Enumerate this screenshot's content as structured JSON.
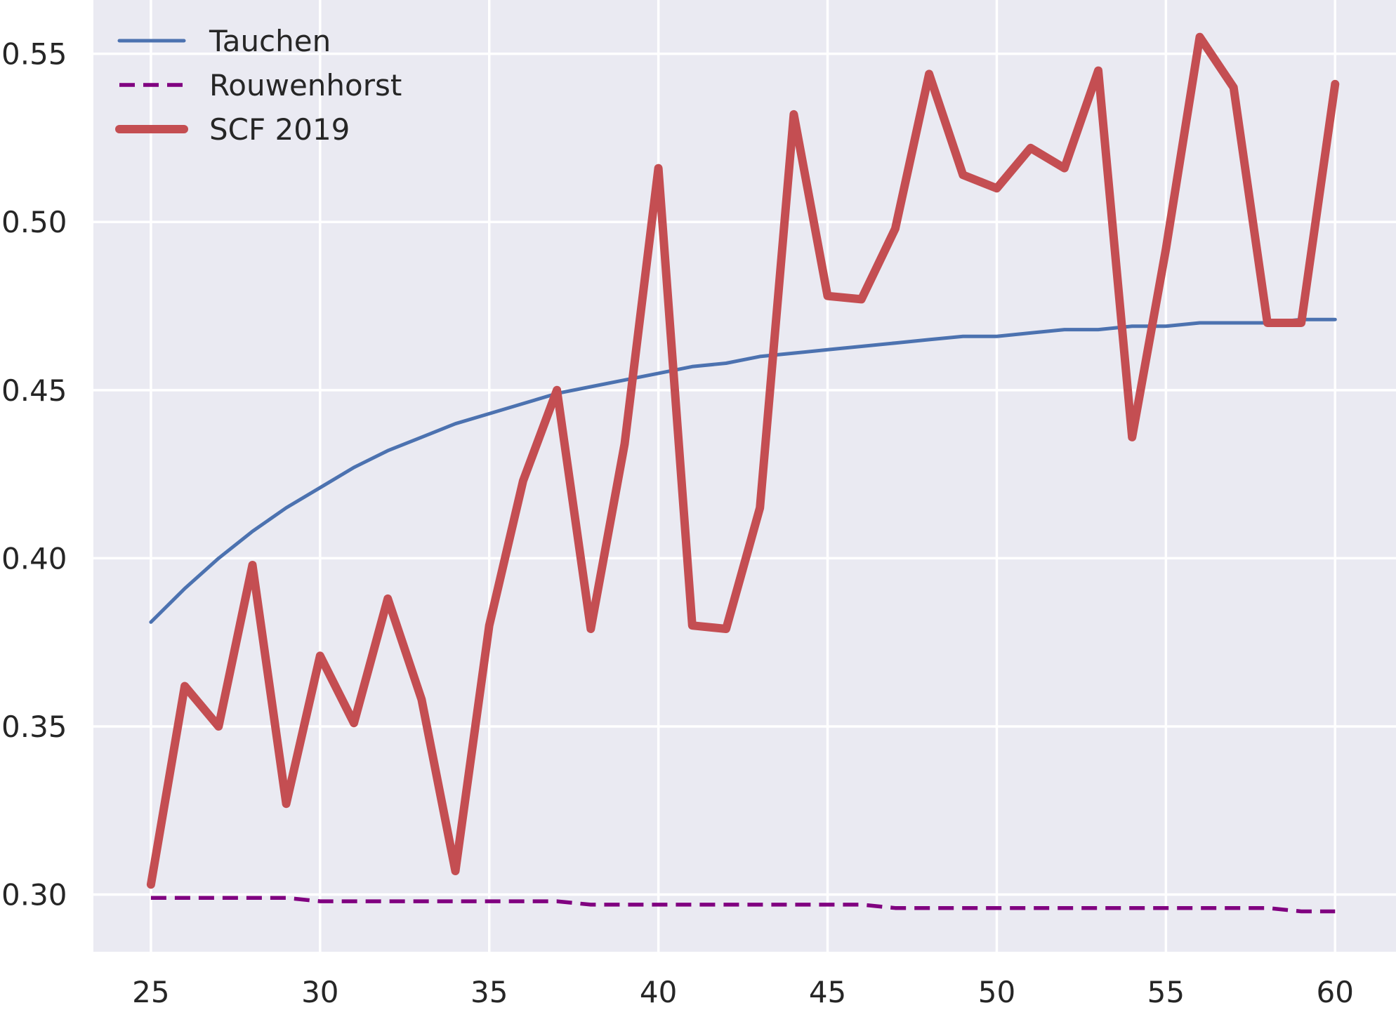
{
  "chart_data": {
    "type": "line",
    "title": "",
    "xlabel": "",
    "ylabel": "",
    "xlim": [
      23.3,
      61.8
    ],
    "ylim": [
      0.283,
      0.566
    ],
    "xticks": [
      25,
      30,
      35,
      40,
      45,
      50,
      55,
      60
    ],
    "yticks": [
      0.3,
      0.35,
      0.4,
      0.45,
      0.5,
      0.55
    ],
    "xtick_labels": [
      "25",
      "30",
      "35",
      "40",
      "45",
      "50",
      "55",
      "60"
    ],
    "ytick_labels": [
      "0.30",
      "0.35",
      "0.40",
      "0.45",
      "0.50",
      "0.55"
    ],
    "grid": true,
    "legend_position": "top-left",
    "x": [
      25,
      26,
      27,
      28,
      29,
      30,
      31,
      32,
      33,
      34,
      35,
      36,
      37,
      38,
      39,
      40,
      41,
      42,
      43,
      44,
      45,
      46,
      47,
      48,
      49,
      50,
      51,
      52,
      53,
      54,
      55,
      56,
      57,
      58,
      59,
      60
    ],
    "series": [
      {
        "name": "Tauchen",
        "color": "#4c72b0",
        "style": "solid",
        "values": [
          0.381,
          0.391,
          0.4,
          0.408,
          0.415,
          0.421,
          0.427,
          0.432,
          0.436,
          0.44,
          0.443,
          0.446,
          0.449,
          0.451,
          0.453,
          0.455,
          0.457,
          0.458,
          0.46,
          0.461,
          0.462,
          0.463,
          0.464,
          0.465,
          0.466,
          0.466,
          0.467,
          0.468,
          0.468,
          0.469,
          0.469,
          0.47,
          0.47,
          0.47,
          0.471,
          0.471
        ]
      },
      {
        "name": "Rouwenhorst",
        "color": "#800080",
        "style": "dashed",
        "values": [
          0.299,
          0.299,
          0.299,
          0.299,
          0.299,
          0.298,
          0.298,
          0.298,
          0.298,
          0.298,
          0.298,
          0.298,
          0.298,
          0.297,
          0.297,
          0.297,
          0.297,
          0.297,
          0.297,
          0.297,
          0.297,
          0.297,
          0.296,
          0.296,
          0.296,
          0.296,
          0.296,
          0.296,
          0.296,
          0.296,
          0.296,
          0.296,
          0.296,
          0.296,
          0.295,
          0.295
        ]
      },
      {
        "name": "SCF 2019",
        "color": "#c44e52",
        "style": "solid-thick",
        "values": [
          0.303,
          0.362,
          0.35,
          0.398,
          0.327,
          0.371,
          0.351,
          0.388,
          0.358,
          0.307,
          0.38,
          0.423,
          0.45,
          0.379,
          0.434,
          0.516,
          0.38,
          0.379,
          0.415,
          0.532,
          0.478,
          0.477,
          0.498,
          0.544,
          0.514,
          0.51,
          0.522,
          0.516,
          0.545,
          0.436,
          0.492,
          0.555,
          0.54,
          0.47,
          0.47,
          0.541
        ]
      }
    ]
  }
}
